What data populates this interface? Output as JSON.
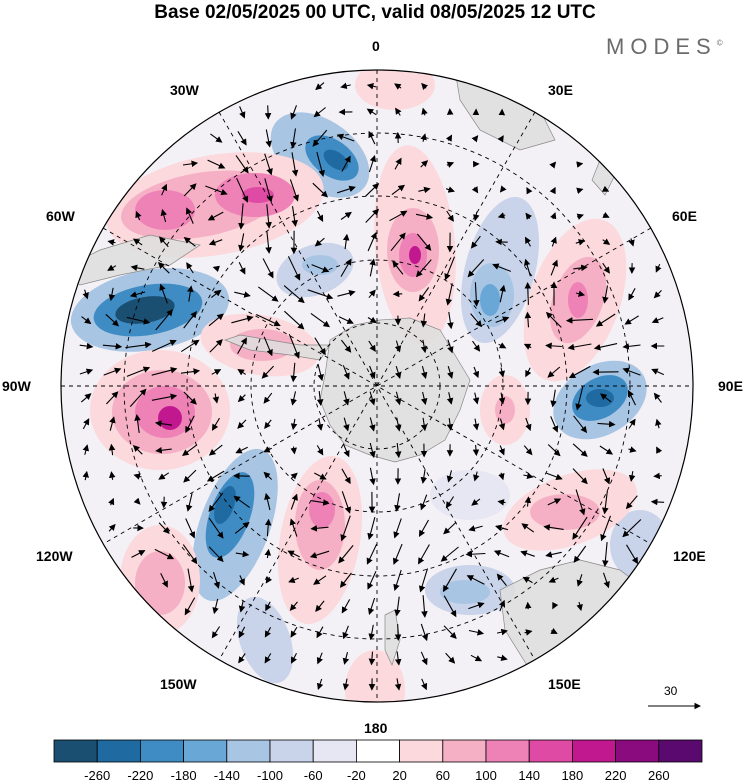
{
  "title": "Base 02/05/2025 00 UTC, valid 08/05/2025 12 UTC",
  "brand": "MODES",
  "brand_mark": "©",
  "longitude_labels": {
    "lon_0": "0",
    "lon_30e": "30E",
    "lon_60e": "60E",
    "lon_90e": "90E",
    "lon_120e": "120E",
    "lon_150e": "150E",
    "lon_180": "180",
    "lon_150w": "150W",
    "lon_120w": "120W",
    "lon_90w": "90W",
    "lon_60w": "60W",
    "lon_30w": "30W"
  },
  "reference_vector": {
    "label": "30"
  },
  "colorbar": {
    "colors": [
      "#1b4f72",
      "#1f6aa0",
      "#3f8cc4",
      "#69a8d6",
      "#a8c5e4",
      "#c9d3ea",
      "#e7e7f3",
      "#ffffff",
      "#fbd9dc",
      "#f6b0c6",
      "#ee82b6",
      "#df4aa4",
      "#c2188f",
      "#8a0b7e",
      "#5a0a6e"
    ],
    "labels": [
      "-260",
      "-220",
      "-180",
      "-140",
      "-100",
      "-60",
      "-20",
      "20",
      "60",
      "100",
      "140",
      "180",
      "220",
      "260"
    ]
  },
  "map_data": {
    "projection": "south-polar-stereographic",
    "field_units": "geopotential anomaly (shaded), wind vectors",
    "anomaly_centers": [
      {
        "name": "neg-30w",
        "value": -200
      },
      {
        "name": "pos-50w",
        "value": 160
      },
      {
        "name": "neg-70w",
        "value": -240
      },
      {
        "name": "pos-95w",
        "value": 200
      },
      {
        "name": "neg-120w",
        "value": -220
      },
      {
        "name": "pos-145w",
        "value": 120
      },
      {
        "name": "pos-160w",
        "value": 140
      },
      {
        "name": "pos-10e",
        "value": 200
      },
      {
        "name": "neg-35e",
        "value": -140
      },
      {
        "name": "pos-60e",
        "value": 140
      },
      {
        "name": "neg-90e",
        "value": -180
      },
      {
        "name": "neg-120e",
        "value": -100
      },
      {
        "name": "neg-150e",
        "value": -100
      },
      {
        "name": "pos-115e",
        "value": 80
      }
    ]
  }
}
